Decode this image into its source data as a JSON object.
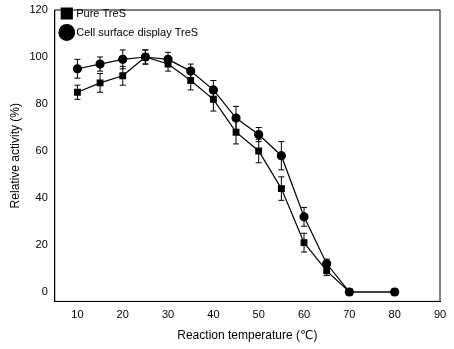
{
  "chart_data": {
    "type": "line",
    "x_label": "Reaction temperature (℃)",
    "y_label": "Relative activity (%)",
    "x": [
      10,
      15,
      20,
      25,
      30,
      35,
      40,
      45,
      50,
      55,
      60,
      65,
      70,
      80
    ],
    "series": [
      {
        "name": "Pure TreS",
        "color": "#000000",
        "marker": "square",
        "line_style": "solid",
        "values": [
          85,
          89,
          92,
          100,
          97,
          90,
          82,
          68,
          60,
          44,
          21,
          9,
          0,
          0
        ],
        "errors": [
          3,
          4,
          4,
          3,
          3,
          4,
          5,
          5,
          5,
          5,
          4,
          2,
          1,
          1
        ]
      },
      {
        "name": "Cell surface display TreS",
        "color": "#000000",
        "marker": "circle",
        "line_style": "solid",
        "values": [
          95,
          97,
          99,
          100,
          99,
          94,
          86,
          74,
          67,
          58,
          32,
          12,
          0,
          0
        ],
        "errors": [
          4,
          3,
          4,
          3,
          3,
          3,
          4,
          5,
          3,
          6,
          4,
          2,
          1,
          1
        ]
      }
    ],
    "xlim": [
      5,
      90
    ],
    "xticks": [
      10,
      20,
      30,
      40,
      50,
      60,
      70,
      80,
      90
    ],
    "ylim": [
      -4,
      120
    ],
    "yticks": [
      0,
      20,
      40,
      60,
      80,
      100,
      120
    ],
    "grid": false,
    "legend": "top-left"
  }
}
